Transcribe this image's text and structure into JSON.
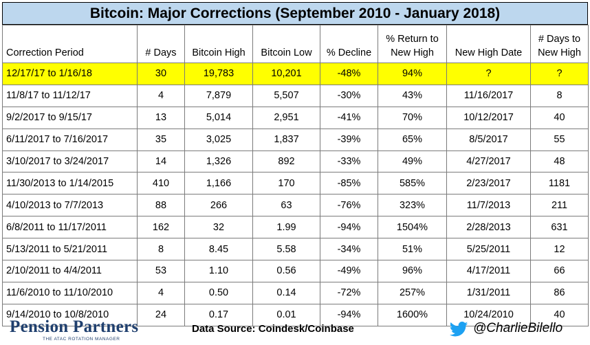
{
  "title": "Bitcoin: Major Corrections (September 2010 - January 2018)",
  "chart_data": {
    "type": "table",
    "columns": [
      "Correction Period",
      "# Days",
      "Bitcoin High",
      "Bitcoin Low",
      "% Decline",
      "% Return to New High",
      "New High Date",
      "# Days to New High"
    ],
    "rows": [
      [
        "12/17/17 to 1/16/18",
        "30",
        "19,783",
        "10,201",
        "-48%",
        "94%",
        "?",
        "?"
      ],
      [
        "11/8/17 to 11/12/17",
        "4",
        "7,879",
        "5,507",
        "-30%",
        "43%",
        "11/16/2017",
        "8"
      ],
      [
        "9/2/2017 to 9/15/17",
        "13",
        "5,014",
        "2,951",
        "-41%",
        "70%",
        "10/12/2017",
        "40"
      ],
      [
        "6/11/2017 to 7/16/2017",
        "35",
        "3,025",
        "1,837",
        "-39%",
        "65%",
        "8/5/2017",
        "55"
      ],
      [
        "3/10/2017 to 3/24/2017",
        "14",
        "1,326",
        "892",
        "-33%",
        "49%",
        "4/27/2017",
        "48"
      ],
      [
        "11/30/2013 to 1/14/2015",
        "410",
        "1,166",
        "170",
        "-85%",
        "585%",
        "2/23/2017",
        "1181"
      ],
      [
        "4/10/2013 to 7/7/2013",
        "88",
        "266",
        "63",
        "-76%",
        "323%",
        "11/7/2013",
        "211"
      ],
      [
        "6/8/2011 to 11/17/2011",
        "162",
        "32",
        "1.99",
        "-94%",
        "1504%",
        "2/28/2013",
        "631"
      ],
      [
        "5/13/2011 to 5/21/2011",
        "8",
        "8.45",
        "5.58",
        "-34%",
        "51%",
        "5/25/2011",
        "12"
      ],
      [
        "2/10/2011 to 4/4/2011",
        "53",
        "1.10",
        "0.56",
        "-49%",
        "96%",
        "4/17/2011",
        "66"
      ],
      [
        "11/6/2010 to 11/10/2010",
        "4",
        "0.50",
        "0.14",
        "-72%",
        "257%",
        "1/31/2011",
        "86"
      ],
      [
        "9/14/2010 to 10/8/2010",
        "24",
        "0.17",
        "0.01",
        "-94%",
        "1600%",
        "10/24/2010",
        "40"
      ]
    ],
    "highlight_row": 0
  },
  "footer": {
    "logo": "Pension Partners",
    "logo_tagline": "THE ATAC ROTATION MANAGER",
    "source": "Data Source: Coindesk/Coinbase",
    "twitter_icon": "twitter-bird-icon",
    "handle": "@CharlieBilello"
  },
  "colors": {
    "title_bg": "#bdd7ee",
    "highlight": "#ffff00",
    "logo": "#1f3f6e",
    "twitter": "#1da1f2"
  }
}
